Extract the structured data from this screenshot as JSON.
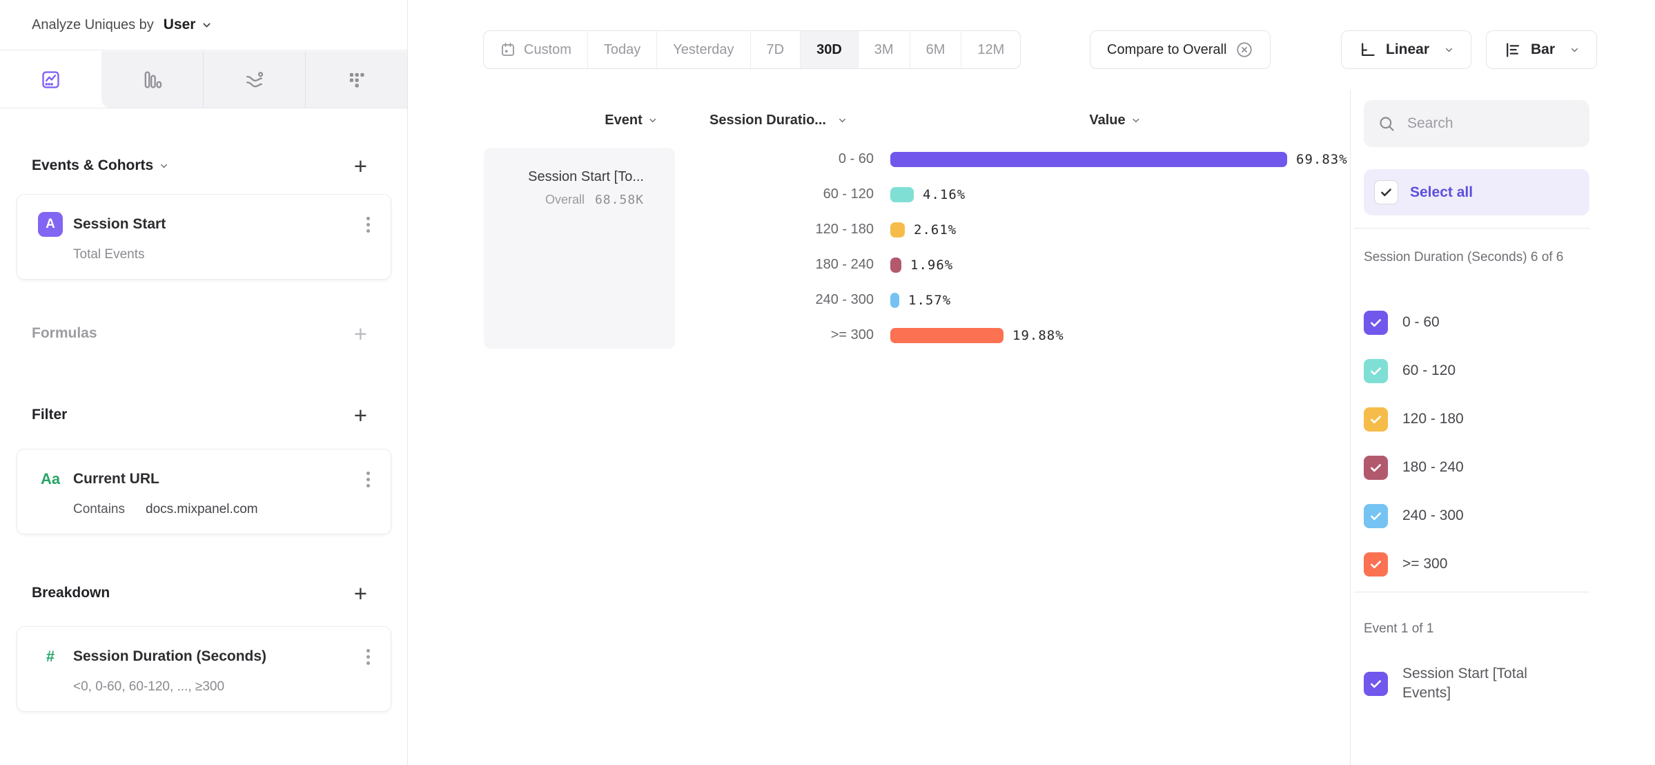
{
  "analyze": {
    "prefix": "Analyze Uniques by",
    "value": "User"
  },
  "toolbar": {
    "ranges": [
      "Custom",
      "Today",
      "Yesterday",
      "7D",
      "30D",
      "3M",
      "6M",
      "12M"
    ],
    "selected_range": "30D",
    "compare_label": "Compare to Overall",
    "linear_label": "Linear",
    "bar_label": "Bar"
  },
  "builder": {
    "events_title": "Events & Cohorts",
    "formulas_title": "Formulas",
    "filter_title": "Filter",
    "breakdown_title": "Breakdown",
    "event_card": {
      "badge": "A",
      "title": "Session Start",
      "subtitle": "Total Events"
    },
    "filter_card": {
      "badge": "Aa",
      "title": "Current URL",
      "operator": "Contains",
      "value": "docs.mixpanel.com"
    },
    "breakdown_card": {
      "badge": "#",
      "title": "Session Duration (Seconds)",
      "subtitle": "<0, 0-60, 60-120, ..., ≥300"
    }
  },
  "table": {
    "columns": [
      "Event",
      "Session Duratio...",
      "Value"
    ],
    "event_cell": {
      "title": "Session Start [To...",
      "overall_label": "Overall",
      "overall_value": "68.58K"
    }
  },
  "chart_data": {
    "type": "bar",
    "orientation": "horizontal",
    "title": "",
    "categories": [
      "0 - 60",
      "60 - 120",
      "120 - 180",
      "180 - 240",
      "240 - 300",
      ">= 300"
    ],
    "values": [
      69.83,
      4.16,
      2.61,
      1.96,
      1.57,
      19.88
    ],
    "value_labels": [
      "69.83%",
      "4.16%",
      "2.61%",
      "1.96%",
      "1.57%",
      "19.88%"
    ],
    "colors": [
      "#7257ec",
      "#7fdfd5",
      "#f6bc49",
      "#b2596e",
      "#74c3f2",
      "#fb7152"
    ],
    "series_name": "Session Start [Total Events]",
    "overall_value": "68.58K",
    "unit": "percent"
  },
  "right_panel": {
    "search_placeholder": "Search",
    "select_all_label": "Select all",
    "group_label": "Session Duration (Seconds) 6 of 6",
    "items": [
      {
        "label": "0 - 60",
        "color": "#7257ec"
      },
      {
        "label": "60 - 120",
        "color": "#7fdfd5"
      },
      {
        "label": "120 - 180",
        "color": "#f6bc49"
      },
      {
        "label": "180 - 240",
        "color": "#b2596e"
      },
      {
        "label": "240 - 300",
        "color": "#74c3f2"
      },
      {
        "label": ">= 300",
        "color": "#fb7152"
      }
    ],
    "event_group_label": "Event 1 of 1",
    "event_item": {
      "label": "Session Start [Total Events]",
      "color": "#7257ec"
    }
  },
  "icons": {
    "plus": "+"
  }
}
